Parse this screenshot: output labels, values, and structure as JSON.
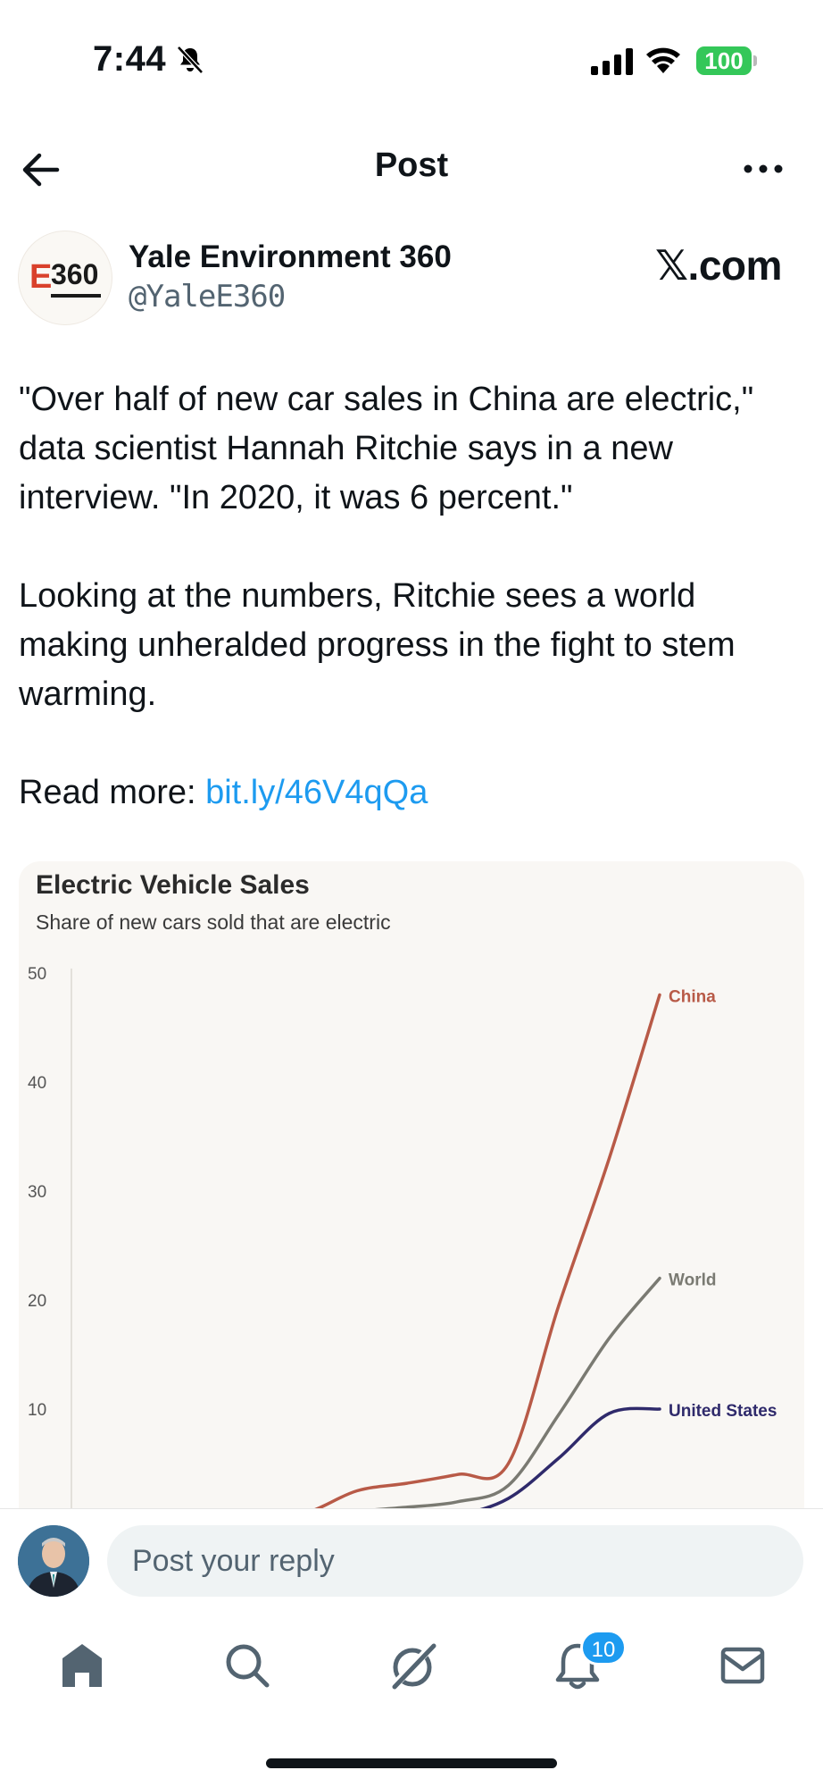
{
  "status_bar": {
    "time": "7:44",
    "battery": "100",
    "icons": [
      "bell-slash-icon",
      "cellular-signal-icon",
      "wifi-icon",
      "battery-icon"
    ]
  },
  "header": {
    "title": "Post",
    "back_icon": "arrow-left-icon",
    "more_icon": "more-horizontal-icon"
  },
  "author": {
    "name": "Yale Environment 360",
    "handle": "@YaleE360",
    "logo_letter": "E",
    "logo_number": "360",
    "source_label": "𝕏.com"
  },
  "post": {
    "paragraph1": "\"Over half of new car sales in China are electric,\" data scientist Hannah Ritchie says in a new interview. \"In 2020, it was 6 percent.\"",
    "paragraph2": "Looking at the numbers, Ritchie sees a world making unheralded progress in the fight to stem warming.",
    "read_more_prefix": "Read more: ",
    "link_text": "bit.ly/46V4qQa"
  },
  "chart_data": {
    "type": "line",
    "title": "Electric Vehicle Sales",
    "subtitle": "Share of new cars sold that are electric",
    "xlabel": "",
    "ylabel": "",
    "ylim": [
      0,
      50
    ],
    "yticks": [
      10,
      20,
      30,
      40,
      50
    ],
    "grid": false,
    "legend": "inline-end-labels",
    "x": [
      0,
      1,
      2,
      3,
      4,
      5,
      6,
      7,
      8,
      9,
      10,
      11,
      12
    ],
    "series": [
      {
        "name": "China",
        "color": "#b85a47",
        "values": [
          0,
          0,
          0,
          0,
          0,
          0.5,
          2.5,
          3.2,
          4,
          5,
          19.5,
          33,
          48
        ]
      },
      {
        "name": "World",
        "color": "#7a7a72",
        "values": [
          0,
          0,
          0,
          0,
          0,
          0,
          0.6,
          1,
          1.5,
          3,
          9.5,
          16.5,
          22
        ]
      },
      {
        "name": "United States",
        "color": "#2f2a6b",
        "values": [
          0,
          0,
          0,
          0,
          0,
          0,
          0,
          0,
          0.3,
          1.8,
          5.5,
          9.6,
          10
        ]
      }
    ]
  },
  "reply": {
    "placeholder": "Post your reply"
  },
  "nav": {
    "items": [
      "home-icon",
      "search-icon",
      "grok-icon",
      "notifications-icon",
      "messages-icon"
    ],
    "notification_count": "10"
  }
}
